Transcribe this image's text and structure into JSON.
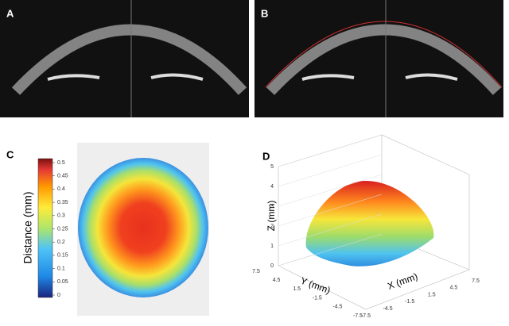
{
  "panels": [
    {
      "label": "A"
    },
    {
      "label": "B"
    },
    {
      "label": "C",
      "colorbar": {
        "label": "Distance (mm)",
        "ticks": [
          0,
          0.05,
          0.1,
          0.15,
          0.2,
          0.25,
          0.3,
          0.35,
          0.4,
          0.45,
          0.5
        ]
      }
    },
    {
      "label": "D",
      "axes": {
        "z": {
          "label": "Z (mm)",
          "ticks": [
            0,
            1,
            2,
            3,
            4,
            5
          ]
        },
        "y": {
          "label": "Y (mm)",
          "ticks": [
            7.5,
            4.5,
            1.5,
            -1.5,
            -4.5,
            -7.5
          ]
        },
        "x": {
          "label": "X (mm)",
          "ticks": [
            -7.5,
            -4.5,
            -1.5,
            1.5,
            4.5,
            7.5
          ]
        }
      }
    }
  ]
}
